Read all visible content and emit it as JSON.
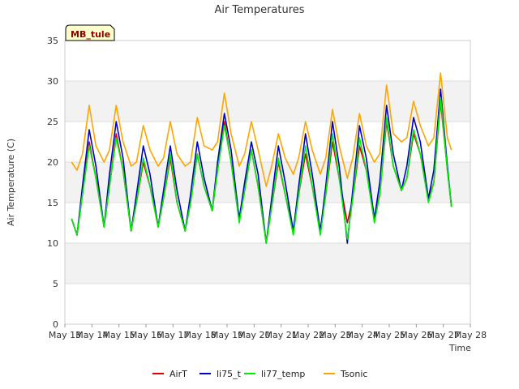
{
  "chart_data": {
    "type": "line",
    "title": "Air Temperatures",
    "xlabel": "Time",
    "ylabel": "Air Temperature (C)",
    "badge": "MB_tule",
    "ylim": [
      0,
      35
    ],
    "yticks": [
      0,
      5,
      10,
      15,
      20,
      25,
      30,
      35
    ],
    "xlim": [
      13,
      28
    ],
    "xticks": [
      {
        "pos": 13,
        "label": "May 13"
      },
      {
        "pos": 14,
        "label": "May 14"
      },
      {
        "pos": 15,
        "label": "May 15"
      },
      {
        "pos": 16,
        "label": "May 16"
      },
      {
        "pos": 17,
        "label": "May 17"
      },
      {
        "pos": 18,
        "label": "May 18"
      },
      {
        "pos": 19,
        "label": "May 19"
      },
      {
        "pos": 20,
        "label": "May 20"
      },
      {
        "pos": 21,
        "label": "May 21"
      },
      {
        "pos": 22,
        "label": "May 22"
      },
      {
        "pos": 23,
        "label": "May 23"
      },
      {
        "pos": 24,
        "label": "May 24"
      },
      {
        "pos": 25,
        "label": "May 25"
      },
      {
        "pos": 26,
        "label": "May 26"
      },
      {
        "pos": 27,
        "label": "May 27"
      },
      {
        "pos": 28,
        "label": "May 28"
      }
    ],
    "grid": true,
    "legend_position": "bottom",
    "x": [
      13.25,
      13.45,
      13.65,
      13.9,
      14.15,
      14.45,
      14.65,
      14.9,
      15.15,
      15.45,
      15.65,
      15.9,
      16.15,
      16.45,
      16.65,
      16.9,
      17.15,
      17.45,
      17.65,
      17.9,
      18.15,
      18.45,
      18.65,
      18.9,
      19.15,
      19.45,
      19.65,
      19.9,
      20.15,
      20.45,
      20.65,
      20.9,
      21.15,
      21.45,
      21.65,
      21.9,
      22.15,
      22.45,
      22.65,
      22.9,
      23.15,
      23.45,
      23.65,
      23.9,
      24.15,
      24.45,
      24.65,
      24.9,
      25.15,
      25.45,
      25.65,
      25.9,
      26.15,
      26.45,
      26.65,
      26.9,
      27.15,
      27.3
    ],
    "series": [
      {
        "name": "AirT",
        "color": "#e00000",
        "values": [
          13.0,
          11.0,
          16.0,
          22.5,
          18.0,
          12.0,
          17.0,
          23.5,
          19.0,
          11.5,
          15.0,
          20.0,
          17.0,
          12.0,
          15.5,
          20.5,
          15.0,
          11.5,
          15.0,
          21.0,
          17.0,
          14.0,
          19.0,
          25.0,
          20.0,
          13.0,
          16.5,
          21.5,
          17.0,
          10.0,
          14.5,
          20.0,
          16.0,
          11.5,
          16.0,
          21.0,
          17.0,
          11.5,
          16.0,
          22.5,
          18.0,
          12.5,
          15.5,
          22.0,
          19.0,
          13.0,
          16.0,
          25.0,
          19.5,
          16.5,
          18.0,
          23.5,
          21.0,
          15.5,
          17.5,
          27.5,
          19.0,
          14.5
        ]
      },
      {
        "name": "li75_t",
        "color": "#0000cc",
        "values": [
          13.0,
          11.0,
          17.0,
          24.0,
          19.5,
          12.0,
          18.5,
          25.0,
          20.5,
          11.5,
          16.0,
          22.0,
          18.5,
          12.0,
          16.5,
          22.0,
          16.5,
          11.5,
          16.0,
          22.5,
          18.0,
          14.0,
          20.0,
          26.0,
          21.5,
          13.0,
          17.5,
          22.5,
          18.5,
          10.0,
          15.5,
          22.0,
          17.5,
          11.5,
          17.0,
          23.5,
          18.5,
          11.5,
          17.0,
          25.0,
          19.5,
          10.0,
          16.5,
          24.5,
          20.5,
          13.0,
          17.5,
          27.0,
          21.0,
          16.5,
          19.5,
          25.5,
          22.5,
          15.5,
          19.0,
          29.0,
          19.5,
          14.5
        ]
      },
      {
        "name": "li77_temp",
        "color": "#00ee00",
        "values": [
          13.0,
          11.0,
          16.0,
          22.0,
          18.0,
          12.0,
          17.0,
          23.0,
          19.0,
          11.5,
          15.0,
          20.5,
          17.0,
          12.0,
          15.5,
          21.0,
          15.0,
          11.5,
          15.0,
          21.0,
          17.0,
          14.0,
          19.0,
          24.5,
          20.0,
          12.5,
          16.5,
          21.5,
          17.0,
          10.0,
          14.5,
          20.5,
          16.0,
          11.0,
          16.0,
          22.0,
          17.0,
          11.0,
          16.0,
          23.5,
          18.0,
          10.5,
          15.5,
          23.0,
          19.0,
          12.5,
          16.0,
          25.5,
          19.5,
          16.5,
          18.0,
          24.0,
          21.0,
          15.0,
          17.5,
          28.0,
          19.0,
          14.5
        ]
      },
      {
        "name": "Tsonic",
        "color": "#ffa500",
        "values": [
          20.0,
          19.0,
          21.0,
          27.0,
          22.0,
          20.0,
          21.5,
          27.0,
          22.5,
          19.5,
          20.0,
          24.5,
          21.5,
          19.5,
          20.5,
          25.0,
          21.0,
          19.5,
          20.0,
          25.5,
          22.0,
          21.5,
          22.5,
          28.5,
          23.5,
          19.5,
          21.0,
          25.0,
          21.5,
          17.0,
          19.5,
          23.5,
          20.5,
          18.5,
          20.5,
          25.0,
          21.5,
          18.5,
          20.5,
          26.5,
          22.0,
          18.0,
          20.5,
          26.0,
          22.0,
          20.0,
          21.0,
          29.5,
          23.5,
          22.5,
          23.0,
          27.5,
          24.5,
          22.0,
          23.0,
          31.0,
          23.0,
          21.5
        ]
      }
    ]
  }
}
